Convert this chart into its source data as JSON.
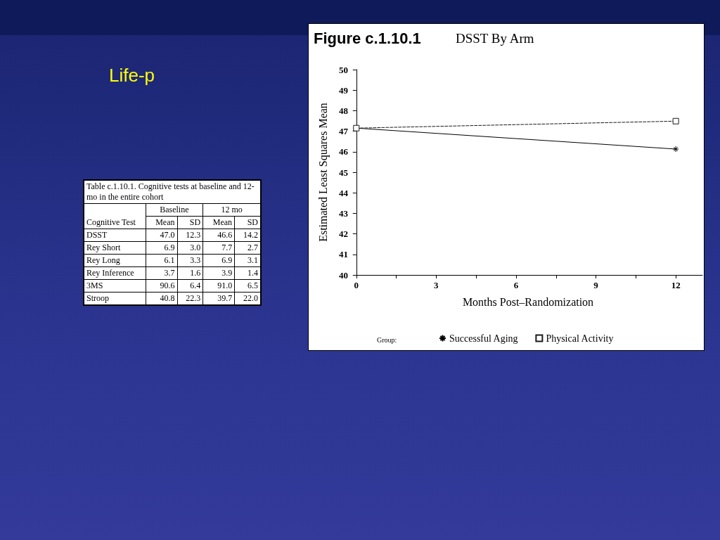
{
  "chart_data": [
    {
      "type": "other",
      "subtitle": "Life-p",
      "title": "Table c.1.10.1. Cognitive tests at baseline and 12-mo in the entire cohort",
      "xlabel": "Cognitive Test",
      "annotations": [
        "Baseline",
        "12 mo"
      ],
      "categories": [
        "Mean",
        "SD",
        "Mean",
        "SD"
      ],
      "y_categories": [
        "DSST",
        "Rey Short",
        "Rey Long",
        "Rey Inference",
        "3MS",
        "Stroop"
      ],
      "cell_labels": [
        [
          "47.0",
          "12.3",
          "46.6",
          "14.2"
        ],
        [
          "6.9",
          "3.0",
          "7.7",
          "2.7"
        ],
        [
          "6.1",
          "3.3",
          "6.9",
          "3.1"
        ],
        [
          "3.7",
          "1.6",
          "3.9",
          "1.4"
        ],
        [
          "90.6",
          "6.4",
          "91.0",
          "6.5"
        ],
        [
          "40.8",
          "22.3",
          "39.7",
          "22.0"
        ]
      ]
    },
    {
      "type": "line",
      "title": "Figure c.1.10.1",
      "subtitle": "DSST By Arm",
      "xlabel": "Months Post–Randomization",
      "ylabel": "Estimated Least Squares Mean",
      "legend_title": "Group:",
      "legend": "bottom",
      "grid": false,
      "x": [
        0,
        12
      ],
      "xlim": [
        -0.1,
        13
      ],
      "xticks": [
        0,
        {
          "value": 1.5,
          "label": null
        },
        3,
        {
          "value": 4.5,
          "label": null
        },
        6,
        {
          "value": 7.5,
          "label": null
        },
        9,
        {
          "value": 10.5,
          "label": null
        },
        12
      ],
      "ylim": [
        40,
        50
      ],
      "yticks": [
        40,
        41,
        42,
        43,
        44,
        45,
        46,
        47,
        48,
        49,
        50
      ],
      "series": [
        {
          "name": "Successful Aging",
          "color": "#000000",
          "values": [
            47.15,
            46.13
          ],
          "marker": "cross",
          "line_style": "solid"
        },
        {
          "name": "Physical Activity",
          "color": "#1a1a1a",
          "values": [
            47.15,
            47.49
          ],
          "marker": "square",
          "line_style": "dashed"
        }
      ]
    }
  ]
}
